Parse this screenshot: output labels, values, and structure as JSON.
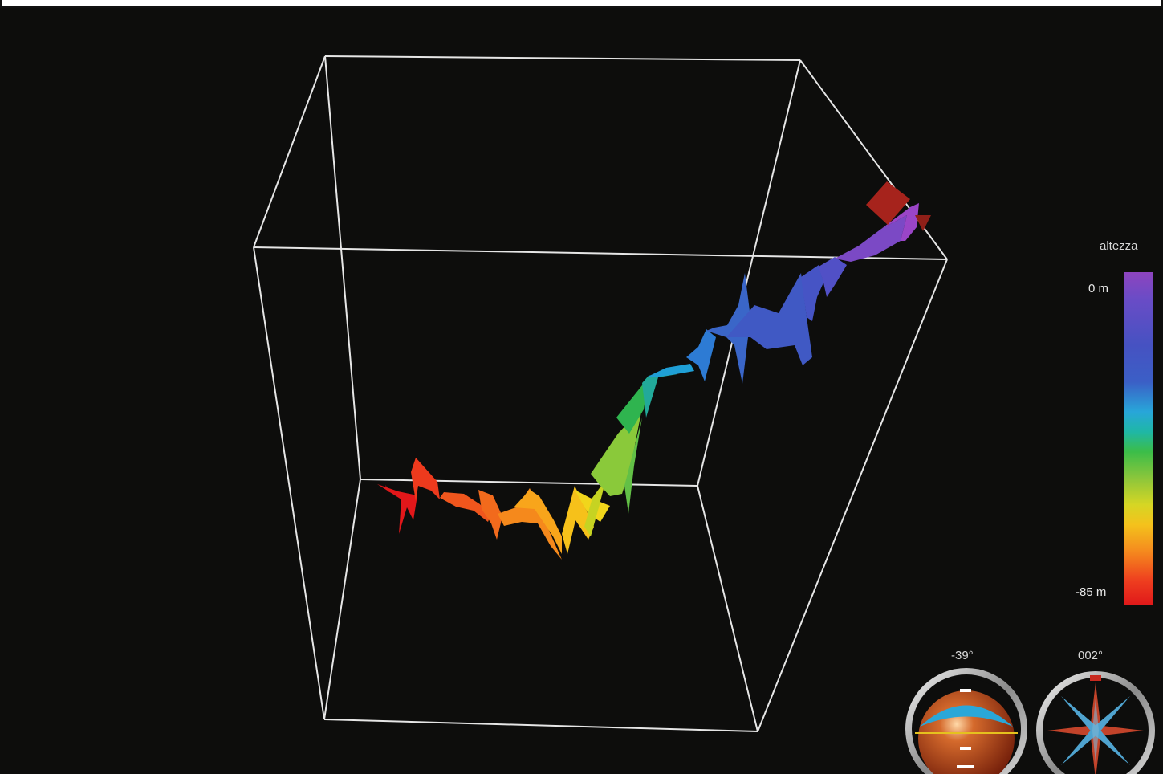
{
  "legend": {
    "title": "altezza",
    "max_label": "0 m",
    "min_label": "-85 m"
  },
  "gauges": {
    "pitch": "-39°",
    "heading": "002°"
  },
  "colors": {
    "background": "#0d0d0c",
    "box_lines": "#e6e6e6",
    "marker": "#a6231c"
  }
}
